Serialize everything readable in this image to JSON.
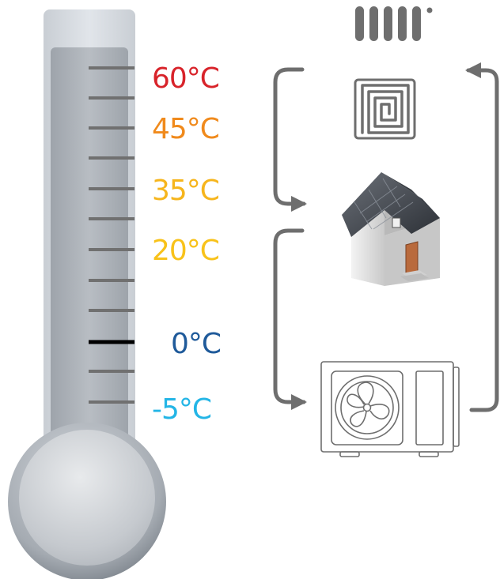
{
  "thermometer": {
    "labels": [
      {
        "text": "60°C",
        "color": "#d8232a"
      },
      {
        "text": "45°C",
        "color": "#f08a1c"
      },
      {
        "text": "35°C",
        "color": "#f6b51c"
      },
      {
        "text": "20°C",
        "color": "#f8c21a"
      },
      {
        "text": "0°C",
        "color": "#1f5a9a"
      },
      {
        "text": "-5°C",
        "color": "#23b5e6"
      }
    ]
  },
  "icons": {
    "radiator": "radiator-icon",
    "underfloor": "underfloor-heating-icon",
    "house": "house-icon",
    "outdoor_unit": "heat-pump-outdoor-unit-icon"
  },
  "colors": {
    "arrow": "#6e6e6e",
    "thermometer_body": "#d6dbe1",
    "thermometer_fill": "#adb3ba",
    "tick": "#707070",
    "zero_tick": "#000000"
  }
}
